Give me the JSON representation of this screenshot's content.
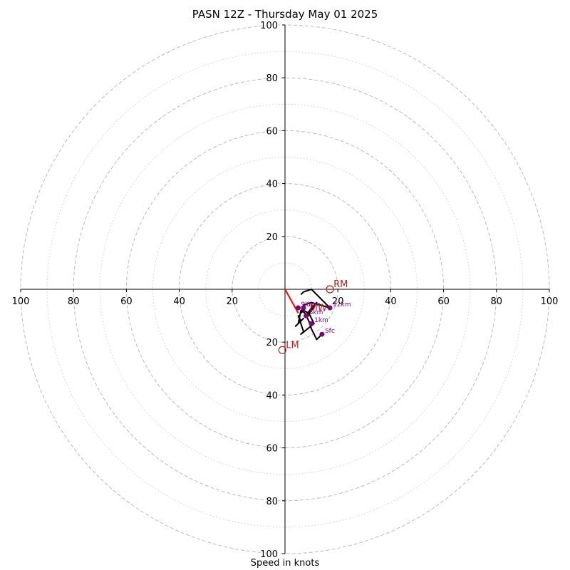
{
  "chart_data": {
    "type": "line",
    "title": "PASN 12Z - Thursday May 01 2025",
    "xlabel": "Speed in knots",
    "ylabel": "",
    "xlim": [
      -100,
      100
    ],
    "ylim": [
      -100,
      100
    ],
    "rings_major": [
      20,
      40,
      60,
      80,
      100
    ],
    "rings_minor": [
      10,
      30,
      50,
      70,
      90
    ],
    "tick_values": [
      20,
      40,
      60,
      80,
      100
    ],
    "grid": true,
    "series": [
      {
        "color": "#000000",
        "x": [
          14,
          12,
          10,
          9,
          8,
          10,
          11,
          10,
          12,
          10,
          9,
          6,
          5,
          4,
          7,
          6,
          5,
          7,
          6,
          11,
          9,
          7,
          6,
          7,
          10,
          10,
          17,
          16,
          15,
          10,
          7,
          6
        ],
        "y": [
          -17,
          -19,
          -15,
          -12,
          -10,
          -7,
          -6,
          -8,
          -5,
          -7,
          -10,
          -8,
          -13,
          -14,
          -11,
          -12,
          -10,
          -16,
          -17,
          -13,
          -9,
          -8,
          -9,
          -6,
          -5,
          -5,
          -7,
          -6,
          -5,
          0,
          -1,
          -2
        ]
      }
    ],
    "height_markers": [
      {
        "label": "Sfc",
        "x": 14,
        "y": -17
      },
      {
        "label": "1km",
        "x": 10,
        "y": -13
      },
      {
        "label": "3km",
        "x": 8,
        "y": -10
      },
      {
        "label": "6km",
        "x": 7,
        "y": -7
      },
      {
        "label": "9km",
        "x": 5,
        "y": -7
      },
      {
        "label": "12km",
        "x": 17,
        "y": -7
      }
    ],
    "storm_motion": [
      {
        "label": "RM",
        "x": 17,
        "y": 0,
        "color": "#b22222"
      },
      {
        "label": "LM",
        "x": -1,
        "y": -23,
        "color": "#b22222"
      },
      {
        "label": "MW",
        "x": 8,
        "y": -9,
        "color": "#b22222"
      }
    ],
    "shear_vector": {
      "x0": 0,
      "y0": 0,
      "x1": 5,
      "y1": -9,
      "color": "#ff0000"
    },
    "colors": {
      "hodograph": "#000000",
      "markers": "#800080",
      "storm_motion": "#b22222",
      "shear": "#ff0000",
      "grid": "#bbbbbb"
    }
  }
}
